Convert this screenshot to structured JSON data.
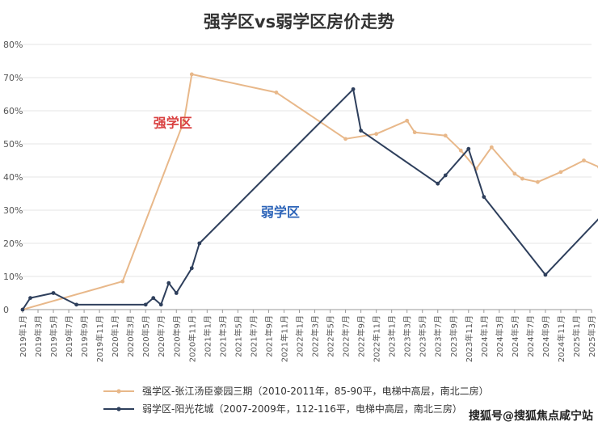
{
  "chart_data": {
    "type": "line",
    "title": "强学区vs弱学区房价走势",
    "yticks": [
      "0",
      "10%",
      "20%",
      "30%",
      "40%",
      "50%",
      "60%",
      "70%",
      "80%"
    ],
    "ylim": [
      0,
      80
    ],
    "grid": true,
    "legend_position": "bottom",
    "x_categories": [
      "2019年1月",
      "2019年3月",
      "2019年5月",
      "2019年7月",
      "2019年9月",
      "2019年11月",
      "2020年1月",
      "2020年3月",
      "2020年5月",
      "2020年7月",
      "2020年9月",
      "2020年11月",
      "2021年1月",
      "2021年3月",
      "2021年5月",
      "2021年7月",
      "2021年9月",
      "2021年11月",
      "2022年1月",
      "2022年3月",
      "2022年5月",
      "2022年7月",
      "2022年9月",
      "2022年11月",
      "2023年1月",
      "2023年3月",
      "2023年5月",
      "2023年7月",
      "2023年9月",
      "2023年11月",
      "2024年1月",
      "2024年3月",
      "2024年5月",
      "2024年7月",
      "2024年9月",
      "2024年11月",
      "2025年1月",
      "2025年3月"
    ],
    "series": [
      {
        "name": "强学区-张江汤臣豪园三期（2010-2011年，85-90平，电梯中高层，南北二房）",
        "color": "#e8b88a",
        "points": [
          {
            "x": 0,
            "y": 0
          },
          {
            "x": 6.5,
            "y": 8.5
          },
          {
            "x": 10.5,
            "y": 57
          },
          {
            "x": 11,
            "y": 71
          },
          {
            "x": 16.5,
            "y": 65.5
          },
          {
            "x": 21,
            "y": 51.5
          },
          {
            "x": 23,
            "y": 53
          },
          {
            "x": 25,
            "y": 57
          },
          {
            "x": 25.5,
            "y": 53.5
          },
          {
            "x": 27.5,
            "y": 52.5
          },
          {
            "x": 28.5,
            "y": 48
          },
          {
            "x": 29.5,
            "y": 42.5
          },
          {
            "x": 30.5,
            "y": 49
          },
          {
            "x": 32,
            "y": 41
          },
          {
            "x": 32.5,
            "y": 39.5
          },
          {
            "x": 33.5,
            "y": 38.5
          },
          {
            "x": 35,
            "y": 41.5
          },
          {
            "x": 36.5,
            "y": 45
          },
          {
            "x": 37.5,
            "y": 43
          },
          {
            "x": 38,
            "y": 44.5
          }
        ]
      },
      {
        "name": "弱学区-阳光花城（2007-2009年，112-116平，电梯中高层，南北三房）",
        "color": "#2e3f5c",
        "points": [
          {
            "x": 0,
            "y": 0
          },
          {
            "x": 0.5,
            "y": 3.5
          },
          {
            "x": 2,
            "y": 5
          },
          {
            "x": 3.5,
            "y": 1.5
          },
          {
            "x": 8,
            "y": 1.5
          },
          {
            "x": 8.5,
            "y": 3.5
          },
          {
            "x": 9,
            "y": 1.5
          },
          {
            "x": 9.5,
            "y": 8
          },
          {
            "x": 10,
            "y": 5
          },
          {
            "x": 11,
            "y": 12.5
          },
          {
            "x": 11.5,
            "y": 20
          },
          {
            "x": 21.5,
            "y": 66.5
          },
          {
            "x": 22,
            "y": 54
          },
          {
            "x": 27,
            "y": 38
          },
          {
            "x": 27.5,
            "y": 40.5
          },
          {
            "x": 29,
            "y": 48.5
          },
          {
            "x": 30,
            "y": 34
          },
          {
            "x": 34,
            "y": 10.5
          },
          {
            "x": 38,
            "y": 30
          }
        ]
      }
    ],
    "annotations": [
      {
        "text": "强学区",
        "x": 8.5,
        "y": 55,
        "color": "#d94040"
      },
      {
        "text": "弱学区",
        "x": 15.5,
        "y": 28,
        "color": "#2b63b8"
      }
    ]
  },
  "watermark": "搜狐号@搜狐焦点咸宁站"
}
